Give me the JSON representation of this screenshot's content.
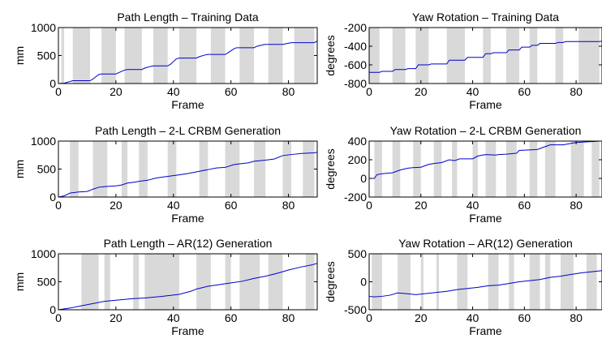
{
  "chart_data": [
    {
      "type": "line",
      "title": "Path Length – Training Data",
      "xlabel": "Frame",
      "ylabel": "mm",
      "xlim": [
        0,
        90
      ],
      "ylim": [
        0,
        1000
      ],
      "xticks": [
        0,
        20,
        40,
        60,
        80
      ],
      "yticks": [
        0,
        500,
        1000
      ],
      "grid": false,
      "line_color": "#0000cc",
      "band_color": "#d9d9d9",
      "shaded_bands": [
        [
          1,
          2
        ],
        [
          5,
          11
        ],
        [
          15,
          20
        ],
        [
          23,
          29
        ],
        [
          33,
          38
        ],
        [
          42,
          48
        ],
        [
          53,
          58
        ],
        [
          63,
          68
        ],
        [
          73,
          78
        ],
        [
          82,
          89
        ]
      ],
      "series": [
        {
          "x": [
            0,
            2,
            4,
            5,
            11,
            12,
            14,
            15,
            20,
            21,
            23,
            24,
            29,
            30,
            32,
            33,
            38,
            39,
            41,
            42,
            48,
            49,
            51,
            52,
            58,
            59,
            61,
            62,
            68,
            69,
            71,
            72,
            78,
            79,
            81,
            82,
            89,
            90
          ],
          "values": [
            0,
            5,
            35,
            50,
            50,
            80,
            160,
            170,
            170,
            195,
            240,
            250,
            250,
            275,
            305,
            315,
            315,
            345,
            440,
            455,
            455,
            480,
            510,
            520,
            520,
            550,
            620,
            640,
            640,
            665,
            690,
            700,
            700,
            710,
            730,
            730,
            730,
            760
          ]
        }
      ]
    },
    {
      "type": "line",
      "title": "Yaw Rotation – Training Data",
      "xlabel": "Frame",
      "ylabel": "degrees",
      "xlim": [
        0,
        90
      ],
      "ylim": [
        -800,
        -200
      ],
      "xticks": [
        0,
        20,
        40,
        60,
        80
      ],
      "yticks": [
        -800,
        -600,
        -400,
        -200
      ],
      "grid": false,
      "line_color": "#0000cc",
      "band_color": "#d9d9d9",
      "shaded_bands": [
        [
          0,
          4
        ],
        [
          9,
          14
        ],
        [
          18,
          23
        ],
        [
          30,
          37
        ],
        [
          44,
          47
        ],
        [
          53,
          58
        ],
        [
          62,
          65
        ],
        [
          72,
          75
        ],
        [
          81,
          89
        ]
      ],
      "series": [
        {
          "x": [
            0,
            4,
            5,
            9,
            10,
            14,
            15,
            18,
            19,
            23,
            24,
            30,
            31,
            37,
            38,
            44,
            45,
            47,
            48,
            53,
            54,
            58,
            59,
            62,
            63,
            65,
            66,
            72,
            73,
            75,
            76,
            81,
            82,
            89,
            90
          ],
          "values": [
            -680,
            -680,
            -670,
            -670,
            -650,
            -650,
            -640,
            -640,
            -600,
            -600,
            -590,
            -590,
            -550,
            -550,
            -520,
            -520,
            -480,
            -480,
            -470,
            -470,
            -440,
            -440,
            -410,
            -410,
            -390,
            -390,
            -370,
            -370,
            -360,
            -360,
            -350,
            -350,
            -350,
            -350,
            -345
          ]
        }
      ]
    },
    {
      "type": "line",
      "title": "Path Length – 2-L CRBM Generation",
      "xlabel": "Frame",
      "ylabel": "mm",
      "xlim": [
        0,
        90
      ],
      "ylim": [
        0,
        1000
      ],
      "xticks": [
        0,
        20,
        40,
        60,
        80
      ],
      "yticks": [
        0,
        500,
        1000
      ],
      "grid": false,
      "line_color": "#0000cc",
      "band_color": "#d9d9d9",
      "shaded_bands": [
        [
          4,
          7
        ],
        [
          12,
          17
        ],
        [
          22,
          24
        ],
        [
          28,
          31
        ],
        [
          38,
          41
        ],
        [
          49,
          52
        ],
        [
          58,
          63
        ],
        [
          68,
          72
        ],
        [
          78,
          81
        ],
        [
          85,
          89
        ]
      ],
      "series": [
        {
          "x": [
            0,
            2,
            4,
            7,
            10,
            12,
            14,
            17,
            20,
            22,
            24,
            27,
            28,
            31,
            34,
            38,
            41,
            45,
            49,
            52,
            55,
            58,
            61,
            64,
            66,
            68,
            72,
            75,
            78,
            81,
            85,
            89,
            90
          ],
          "values": [
            0,
            20,
            70,
            90,
            100,
            140,
            175,
            190,
            200,
            215,
            250,
            270,
            280,
            300,
            340,
            370,
            390,
            420,
            460,
            490,
            520,
            530,
            580,
            600,
            610,
            640,
            660,
            680,
            740,
            760,
            780,
            790,
            800
          ]
        }
      ]
    },
    {
      "type": "line",
      "title": "Yaw Rotation – 2-L CRBM Generation",
      "xlabel": "Frame",
      "ylabel": "degrees",
      "xlim": [
        0,
        90
      ],
      "ylim": [
        -200,
        400
      ],
      "xticks": [
        0,
        20,
        40,
        60,
        80
      ],
      "yticks": [
        -200,
        0,
        200,
        400
      ],
      "grid": false,
      "line_color": "#0000cc",
      "band_color": "#d9d9d9",
      "shaded_bands": [
        [
          2,
          5
        ],
        [
          9,
          12
        ],
        [
          17,
          20
        ],
        [
          25,
          28
        ],
        [
          32,
          34
        ],
        [
          40,
          42
        ],
        [
          45,
          49
        ],
        [
          53,
          57
        ],
        [
          62,
          65
        ],
        [
          68,
          72
        ],
        [
          78,
          83
        ],
        [
          86,
          89
        ]
      ],
      "series": [
        {
          "x": [
            0,
            2,
            3,
            5,
            7,
            9,
            12,
            15,
            17,
            20,
            23,
            25,
            28,
            31,
            33,
            35,
            40,
            42,
            45,
            49,
            50,
            53,
            57,
            58,
            62,
            65,
            68,
            70,
            72,
            75,
            78,
            80,
            83,
            86,
            89,
            90
          ],
          "values": [
            0,
            0,
            40,
            50,
            55,
            60,
            90,
            110,
            115,
            120,
            150,
            160,
            170,
            200,
            190,
            210,
            210,
            240,
            255,
            250,
            255,
            260,
            270,
            300,
            305,
            310,
            340,
            360,
            360,
            360,
            375,
            385,
            390,
            395,
            400,
            400
          ]
        }
      ]
    },
    {
      "type": "line",
      "title": "Path Length – AR(12) Generation",
      "xlabel": "Frame",
      "ylabel": "mm",
      "xlim": [
        0,
        90
      ],
      "ylim": [
        0,
        1000
      ],
      "xticks": [
        0,
        20,
        40,
        60,
        80
      ],
      "yticks": [
        0,
        500,
        1000
      ],
      "grid": false,
      "line_color": "#0000cc",
      "band_color": "#d9d9d9",
      "shaded_bands": [
        [
          8,
          14
        ],
        [
          16,
          18
        ],
        [
          26,
          28
        ],
        [
          30,
          42
        ],
        [
          48,
          53
        ],
        [
          58,
          60
        ],
        [
          63,
          70
        ],
        [
          73,
          78
        ],
        [
          86,
          89
        ]
      ],
      "series": [
        {
          "x": [
            0,
            4,
            8,
            12,
            16,
            20,
            26,
            30,
            36,
            42,
            46,
            48,
            52,
            56,
            60,
            64,
            68,
            72,
            76,
            80,
            84,
            88,
            90
          ],
          "values": [
            0,
            30,
            70,
            110,
            150,
            170,
            200,
            210,
            240,
            275,
            330,
            370,
            420,
            450,
            480,
            510,
            560,
            600,
            650,
            710,
            760,
            800,
            830
          ]
        }
      ]
    },
    {
      "type": "line",
      "title": "Yaw Rotation – AR(12) Generation",
      "xlabel": "Frame",
      "ylabel": "degrees",
      "xlim": [
        0,
        90
      ],
      "ylim": [
        -500,
        500
      ],
      "xticks": [
        0,
        20,
        40,
        60,
        80
      ],
      "yticks": [
        -500,
        0,
        500
      ],
      "grid": false,
      "line_color": "#0000cc",
      "band_color": "#d9d9d9",
      "shaded_bands": [
        [
          1,
          5
        ],
        [
          11,
          16
        ],
        [
          20,
          21
        ],
        [
          26,
          27
        ],
        [
          34,
          38
        ],
        [
          46,
          50
        ],
        [
          54,
          56
        ],
        [
          62,
          66
        ],
        [
          68,
          70
        ],
        [
          74,
          79
        ],
        [
          84,
          88
        ]
      ],
      "series": [
        {
          "x": [
            0,
            2,
            5,
            8,
            11,
            14,
            18,
            22,
            26,
            30,
            34,
            38,
            42,
            46,
            50,
            54,
            58,
            62,
            66,
            70,
            74,
            78,
            82,
            86,
            90
          ],
          "values": [
            -260,
            -270,
            -260,
            -240,
            -200,
            -210,
            -230,
            -210,
            -190,
            -170,
            -140,
            -120,
            -100,
            -70,
            -60,
            -30,
            0,
            20,
            40,
            80,
            100,
            130,
            160,
            180,
            200
          ]
        }
      ]
    }
  ]
}
